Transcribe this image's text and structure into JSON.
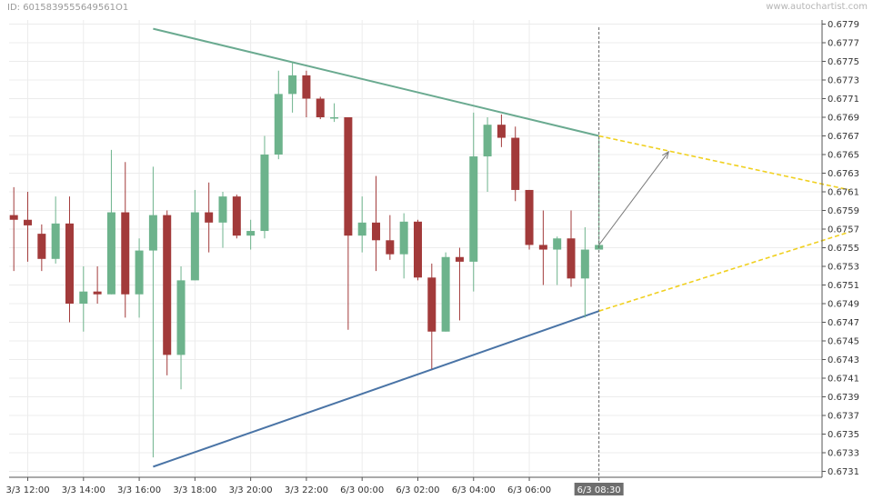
{
  "header": {
    "chart_id": "ID: 6015839555649561O1",
    "watermark": "www.autochartist.com"
  },
  "colors": {
    "bull": "#6db38c",
    "bear": "#a23a3a",
    "upper_trend": "#6aaa90",
    "lower_trend": "#4a74a6",
    "projection": "#f0d020",
    "arrow": "#7a7a7a",
    "highlight_label_bg": "#6e6e6e"
  },
  "chart_data": {
    "type": "candlestick",
    "timeframe": "30min",
    "ylim": [
      0.673,
      0.678
    ],
    "y_ticks": [
      "0.6779",
      "0.6777",
      "0.6775",
      "0.6773",
      "0.6771",
      "0.6769",
      "0.6767",
      "0.6765",
      "0.6763",
      "0.6761",
      "0.6759",
      "0.6757",
      "0.6755",
      "0.6753",
      "0.6751",
      "0.6749",
      "0.6747",
      "0.6745",
      "0.6743",
      "0.6741",
      "0.6739",
      "0.6737",
      "0.6735",
      "0.6733",
      "0.6731"
    ],
    "x_ticks": [
      {
        "label": "3/3 12:00",
        "index": 1
      },
      {
        "label": "3/3 14:00",
        "index": 5
      },
      {
        "label": "3/3 16:00",
        "index": 9
      },
      {
        "label": "3/3 18:00",
        "index": 13
      },
      {
        "label": "3/3 20:00",
        "index": 17
      },
      {
        "label": "3/3 22:00",
        "index": 21
      },
      {
        "label": "6/3 00:00",
        "index": 25
      },
      {
        "label": "6/3 02:00",
        "index": 29
      },
      {
        "label": "6/3 04:00",
        "index": 33
      },
      {
        "label": "6/3 06:00",
        "index": 37
      },
      {
        "label": "6/3 08:30",
        "index": 42,
        "highlight": true
      }
    ],
    "candles": [
      {
        "o": 0.67585,
        "h": 0.67615,
        "l": 0.67525,
        "c": 0.6758
      },
      {
        "o": 0.6758,
        "h": 0.6761,
        "l": 0.67535,
        "c": 0.67574
      },
      {
        "o": 0.67565,
        "h": 0.67575,
        "l": 0.67525,
        "c": 0.67538
      },
      {
        "o": 0.67538,
        "h": 0.67605,
        "l": 0.67533,
        "c": 0.67576
      },
      {
        "o": 0.67576,
        "h": 0.67605,
        "l": 0.6747,
        "c": 0.6749
      },
      {
        "o": 0.6749,
        "h": 0.6753,
        "l": 0.6746,
        "c": 0.67503
      },
      {
        "o": 0.67503,
        "h": 0.6753,
        "l": 0.6749,
        "c": 0.675
      },
      {
        "o": 0.675,
        "h": 0.67655,
        "l": 0.675,
        "c": 0.67588
      },
      {
        "o": 0.67588,
        "h": 0.67642,
        "l": 0.67475,
        "c": 0.675
      },
      {
        "o": 0.675,
        "h": 0.6756,
        "l": 0.67475,
        "c": 0.67547
      },
      {
        "o": 0.67547,
        "h": 0.67637,
        "l": 0.67325,
        "c": 0.67585
      },
      {
        "o": 0.67585,
        "h": 0.6759,
        "l": 0.67413,
        "c": 0.67435
      },
      {
        "o": 0.67435,
        "h": 0.6753,
        "l": 0.67398,
        "c": 0.67515
      },
      {
        "o": 0.67515,
        "h": 0.67612,
        "l": 0.67515,
        "c": 0.67588
      },
      {
        "o": 0.67588,
        "h": 0.6762,
        "l": 0.67545,
        "c": 0.67577
      },
      {
        "o": 0.67577,
        "h": 0.6761,
        "l": 0.6755,
        "c": 0.67605
      },
      {
        "o": 0.67605,
        "h": 0.67607,
        "l": 0.6756,
        "c": 0.67563
      },
      {
        "o": 0.67563,
        "h": 0.6758,
        "l": 0.67548,
        "c": 0.67568
      },
      {
        "o": 0.67568,
        "h": 0.6767,
        "l": 0.6756,
        "c": 0.6765
      },
      {
        "o": 0.6765,
        "h": 0.6774,
        "l": 0.67645,
        "c": 0.67715
      },
      {
        "o": 0.67715,
        "h": 0.6775,
        "l": 0.67695,
        "c": 0.67735
      },
      {
        "o": 0.67735,
        "h": 0.6774,
        "l": 0.6769,
        "c": 0.6771
      },
      {
        "o": 0.6771,
        "h": 0.67712,
        "l": 0.67688,
        "c": 0.6769
      },
      {
        "o": 0.6769,
        "h": 0.67705,
        "l": 0.67685,
        "c": 0.6769
      },
      {
        "o": 0.6769,
        "h": 0.6769,
        "l": 0.67462,
        "c": 0.67563
      },
      {
        "o": 0.67563,
        "h": 0.67605,
        "l": 0.67545,
        "c": 0.67577
      },
      {
        "o": 0.67577,
        "h": 0.67627,
        "l": 0.67525,
        "c": 0.67558
      },
      {
        "o": 0.67558,
        "h": 0.67585,
        "l": 0.67537,
        "c": 0.67543
      },
      {
        "o": 0.67543,
        "h": 0.67587,
        "l": 0.67517,
        "c": 0.67578
      },
      {
        "o": 0.67578,
        "h": 0.6758,
        "l": 0.67515,
        "c": 0.67518
      },
      {
        "o": 0.67518,
        "h": 0.67533,
        "l": 0.6742,
        "c": 0.6746
      },
      {
        "o": 0.6746,
        "h": 0.67545,
        "l": 0.6746,
        "c": 0.6754
      },
      {
        "o": 0.6754,
        "h": 0.6755,
        "l": 0.67472,
        "c": 0.67535
      },
      {
        "o": 0.67535,
        "h": 0.67695,
        "l": 0.67503,
        "c": 0.67648
      },
      {
        "o": 0.67648,
        "h": 0.6769,
        "l": 0.6761,
        "c": 0.67682
      },
      {
        "o": 0.67682,
        "h": 0.67693,
        "l": 0.67658,
        "c": 0.67668
      },
      {
        "o": 0.67668,
        "h": 0.6768,
        "l": 0.676,
        "c": 0.67612
      },
      {
        "o": 0.67612,
        "h": 0.67612,
        "l": 0.67548,
        "c": 0.67553
      },
      {
        "o": 0.67553,
        "h": 0.6759,
        "l": 0.6751,
        "c": 0.67548
      },
      {
        "o": 0.67548,
        "h": 0.67562,
        "l": 0.6751,
        "c": 0.6756
      },
      {
        "o": 0.6756,
        "h": 0.6759,
        "l": 0.67508,
        "c": 0.67517
      },
      {
        "o": 0.67517,
        "h": 0.67572,
        "l": 0.67475,
        "c": 0.67548
      },
      {
        "o": 0.67548,
        "h": 0.67668,
        "l": 0.67548,
        "c": 0.67553
      }
    ],
    "trend_lines": [
      {
        "name": "resistance",
        "start": {
          "index": 10,
          "price": 0.67785
        },
        "end": {
          "index": 42,
          "price": 0.6767
        }
      },
      {
        "name": "support",
        "start": {
          "index": 10,
          "price": 0.67315
        },
        "end": {
          "index": 42,
          "price": 0.67482
        }
      }
    ],
    "projections": [
      {
        "name": "resistance-projection",
        "start": {
          "index": 42,
          "price": 0.6767
        },
        "end": {
          "index": 60,
          "price": 0.67612
        }
      },
      {
        "name": "support-projection",
        "start": {
          "index": 42,
          "price": 0.67482
        },
        "end": {
          "index": 60,
          "price": 0.67567
        }
      }
    ],
    "forecast_arrow": {
      "start": {
        "index": 42,
        "price": 0.67553
      },
      "end": {
        "index": 47,
        "price": 0.67653
      }
    },
    "current_time_index": 42,
    "grid": true,
    "price_axis": "right"
  }
}
